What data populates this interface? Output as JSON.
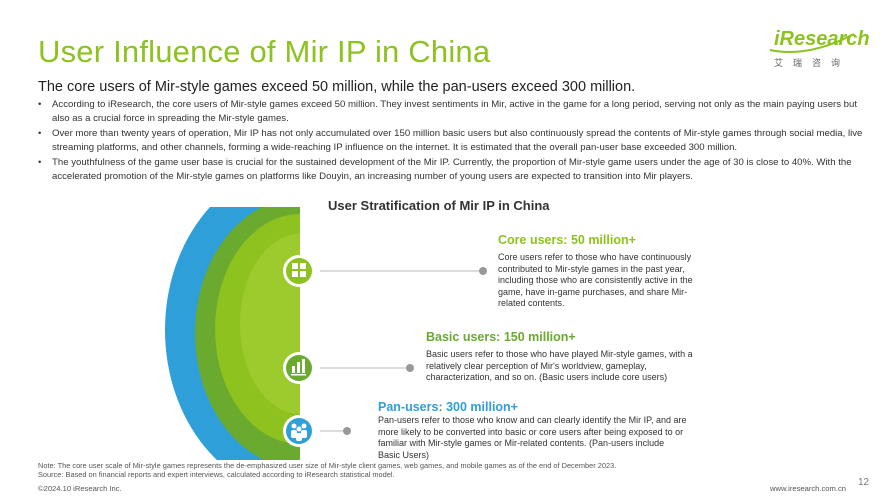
{
  "page": {
    "title": "User Influence of Mir IP in China",
    "subtitle": "The core users of Mir-style games exceed 50 million, while the pan-users exceed 300 million.",
    "bullets": [
      "According to iResearch, the core users of Mir-style games exceed 50 million. They invest sentiments in Mir, active in the game for a long period, serving not only as the main paying users but also as a crucial force in spreading the Mir-style games.",
      "Over more than twenty years of operation, Mir IP has not only accumulated over 150 million basic users but also continuously spread the contents of Mir-style games through social media, live streaming platforms, and other channels, forming a wide-reaching IP influence on the internet. It is estimated that the overall pan-user base exceeded 300 million.",
      "The youthfulness of the game user base is crucial for the sustained development of the Mir IP. Currently, the proportion of Mir-style game users under the age of 30 is close to 40%. With the accelerated promotion of the Mir-style games on platforms like Douyin, an increasing number of young users are expected to transition into Mir players."
    ]
  },
  "logo": {
    "name": "iResearch",
    "sub": "艾瑞咨询"
  },
  "diagram": {
    "title": "User Stratification of Mir IP in China",
    "tiers": [
      {
        "head": "Core users: 50 million+",
        "color": "#8dc21f",
        "icon": "group-icon",
        "desc": "Core users refer to those who have continuously contributed to Mir-style games in the past year, including those who are consistently active in the game, have in-game purchases, and share Mir-related contents."
      },
      {
        "head": "Basic users: 150 million+",
        "color": "#6aaa2f",
        "icon": "bar-chart-icon",
        "desc": "Basic users refer to those who have played Mir-style games, with a relatively clear perception of Mir's worldview, gameplay, characterization, and so on. (Basic users include core users)"
      },
      {
        "head": "Pan-users: 300 million+",
        "color": "#2e9fd9",
        "icon": "people-icon",
        "desc": "Pan-users refer to those who know and can clearly identify the Mir IP, and are more likely to be converted into basic or core users after being exposed to or familiar with Mir-style games or Mir-related contents. (Pan-users include Basic Users)"
      }
    ]
  },
  "footer": {
    "note": "Note: The core user scale of Mir-style games represents the de-emphasized user size of Mir-style client games, web games, and mobile games as of the end of December 2023.",
    "source": "Source: Based on financial reports and expert interviews, calculated according to iResearch statistical model.",
    "copyright": "©2024.10 iResearch Inc.",
    "website": "www.iresearch.com.cn",
    "page_number": "12"
  }
}
